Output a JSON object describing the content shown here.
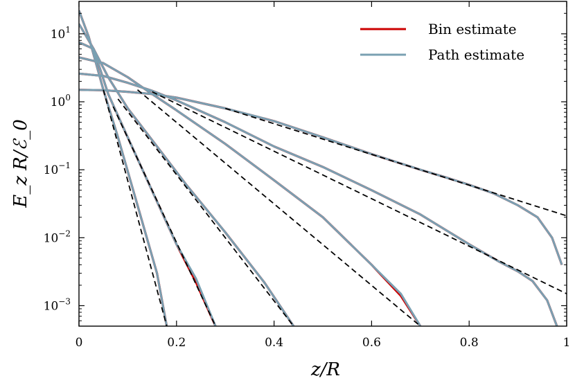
{
  "chart_data": {
    "type": "line",
    "title": "",
    "xlabel": "z/R",
    "ylabel": "E_z R/ℰ_0",
    "xlim": [
      0,
      1
    ],
    "ylim": [
      0.0005,
      30
    ],
    "yscale": "log",
    "x_ticks": [
      {
        "value": 0,
        "label": "0"
      },
      {
        "value": 0.2,
        "label": "0.2"
      },
      {
        "value": 0.4,
        "label": "0.4"
      },
      {
        "value": 0.6,
        "label": "0.6"
      },
      {
        "value": 0.8,
        "label": "0.8"
      },
      {
        "value": 1,
        "label": "1"
      }
    ],
    "y_ticks": [
      {
        "value": 10,
        "base": "10",
        "exp": "1"
      },
      {
        "value": 1,
        "base": "10",
        "exp": "0"
      },
      {
        "value": 0.1,
        "base": "10",
        "exp": "−1"
      },
      {
        "value": 0.01,
        "base": "10",
        "exp": "−2"
      },
      {
        "value": 0.001,
        "base": "10",
        "exp": "−3"
      }
    ],
    "legend": {
      "position": "top-right",
      "entries": [
        {
          "label": "Bin estimate",
          "color": "#cc0000"
        },
        {
          "label": "Path estimate",
          "color": "#7aa0b2"
        }
      ]
    },
    "colors": {
      "bin": "#cc0000",
      "path": "#7aa0b2",
      "reference": "#000000"
    },
    "series": [
      {
        "x": [
          0,
          0.02,
          0.05,
          0.08,
          0.12,
          0.16,
          0.18
        ],
        "path": [
          22,
          9,
          1.5,
          0.3,
          0.03,
          0.003,
          0.0005
        ],
        "bin": [
          22,
          9,
          1.5,
          0.3,
          0.03,
          0.003,
          0.0005
        ],
        "ref_x": [
          0.05,
          0.18
        ],
        "ref_y": [
          1.5,
          0.0005
        ]
      },
      {
        "x": [
          0,
          0.03,
          0.06,
          0.1,
          0.14,
          0.2,
          0.24,
          0.28
        ],
        "path": [
          14,
          6,
          1.3,
          0.3,
          0.07,
          0.008,
          0.0025,
          0.0005
        ],
        "bin": [
          14,
          6,
          1.3,
          0.3,
          0.07,
          0.008,
          0.0022,
          0.0005
        ],
        "ref_x": [
          0.07,
          0.28
        ],
        "ref_y": [
          0.85,
          0.0005
        ]
      },
      {
        "x": [
          0,
          0.03,
          0.06,
          0.1,
          0.16,
          0.22,
          0.3,
          0.38,
          0.44
        ],
        "path": [
          7.5,
          6,
          2.3,
          0.8,
          0.22,
          0.06,
          0.012,
          0.0022,
          0.0005
        ],
        "bin": [
          7.5,
          6,
          2.3,
          0.8,
          0.22,
          0.06,
          0.012,
          0.0022,
          0.0005
        ],
        "ref_x": [
          0.08,
          0.44
        ],
        "ref_y": [
          1.1,
          0.0005
        ]
      },
      {
        "x": [
          0,
          0.05,
          0.1,
          0.15,
          0.2,
          0.3,
          0.4,
          0.5,
          0.6,
          0.66,
          0.7
        ],
        "path": [
          4.5,
          3.7,
          2.3,
          1.3,
          0.75,
          0.24,
          0.07,
          0.02,
          0.004,
          0.0015,
          0.0005
        ],
        "bin": [
          4.5,
          3.7,
          2.3,
          1.3,
          0.75,
          0.24,
          0.07,
          0.02,
          0.004,
          0.0014,
          0.0005
        ],
        "ref_x": [
          0.12,
          0.7
        ],
        "ref_y": [
          1.5,
          0.0005
        ]
      },
      {
        "x": [
          0,
          0.05,
          0.1,
          0.15,
          0.2,
          0.3,
          0.4,
          0.5,
          0.6,
          0.7,
          0.8,
          0.86,
          0.9,
          0.93,
          0.96,
          0.98
        ],
        "path": [
          2.6,
          2.4,
          1.9,
          1.45,
          1.05,
          0.5,
          0.22,
          0.11,
          0.05,
          0.022,
          0.008,
          0.0045,
          0.0032,
          0.0023,
          0.0012,
          0.0005
        ],
        "bin": [
          2.6,
          2.4,
          1.9,
          1.45,
          1.05,
          0.5,
          0.22,
          0.11,
          0.05,
          0.022,
          0.008,
          0.0045,
          0.0032,
          0.0023,
          0.0012,
          0.0005
        ],
        "ref_x": [
          0.15,
          1
        ],
        "ref_y": [
          1.4,
          0.0015
        ]
      },
      {
        "x": [
          0,
          0.05,
          0.1,
          0.15,
          0.2,
          0.3,
          0.4,
          0.5,
          0.6,
          0.7,
          0.75,
          0.8,
          0.85,
          0.9,
          0.94,
          0.97,
          0.99
        ],
        "path": [
          1.5,
          1.48,
          1.4,
          1.3,
          1.15,
          0.8,
          0.52,
          0.3,
          0.17,
          0.1,
          0.078,
          0.06,
          0.045,
          0.03,
          0.02,
          0.01,
          0.004
        ],
        "bin": [
          1.5,
          1.48,
          1.4,
          1.3,
          1.15,
          0.8,
          0.52,
          0.3,
          0.17,
          0.1,
          0.078,
          0.06,
          0.045,
          0.03,
          0.02,
          0.01,
          0.004
        ],
        "ref_x": [
          0.3,
          1
        ],
        "ref_y": [
          0.8,
          0.021
        ]
      }
    ]
  }
}
